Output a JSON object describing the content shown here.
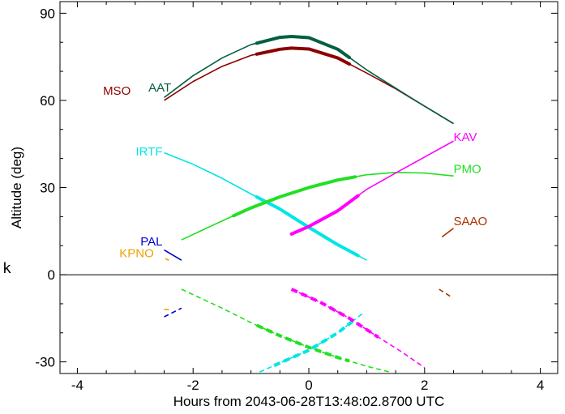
{
  "chart_data": {
    "type": "line",
    "title": "",
    "xlabel": "Hours from 2043-06-28T13:48:02.8700 UTC",
    "ylabel": "Altitude (deg)",
    "xlim": [
      -4.3,
      4.3
    ],
    "ylim": [
      -34,
      94
    ],
    "x_ticks": [
      -4,
      -2,
      0,
      2,
      4
    ],
    "y_ticks": [
      -30,
      0,
      30,
      60,
      90
    ],
    "x_tick_labels": [
      "-4",
      "-2",
      "0",
      "2",
      "4"
    ],
    "y_tick_labels": [
      "-30",
      "0",
      "30",
      "60",
      "90"
    ],
    "zero_line": 0,
    "side_label": "k",
    "grid": false,
    "series": [
      {
        "name": "MSO",
        "color": "#8b0000",
        "x": [
          -2.5,
          -2.0,
          -1.5,
          -1.0,
          -0.5,
          -0.3,
          0.0,
          0.5,
          1.0,
          1.5,
          2.0,
          2.5
        ],
        "y": [
          60,
          66.5,
          71.7,
          75.5,
          77.6,
          78,
          77.7,
          74.6,
          69.4,
          64,
          58,
          52
        ],
        "thick_x": [
          [
            -0.9,
            0.7
          ]
        ],
        "label_x": -3.05,
        "label_y": 62
      },
      {
        "name": "AAT",
        "color": "#006040",
        "x": [
          -2.5,
          -2.0,
          -1.5,
          -1.0,
          -0.5,
          -0.3,
          0.0,
          0.5,
          1.0,
          1.5,
          2.0,
          2.5
        ],
        "y": [
          61,
          68.5,
          74.6,
          79.2,
          81.7,
          82,
          81.6,
          77.6,
          70.5,
          64.2,
          58,
          52
        ],
        "thick_x": [
          [
            -0.9,
            0.7
          ]
        ],
        "label_x": -2.35,
        "label_y": 63
      },
      {
        "name": "IRTF",
        "color": "#00e5e5",
        "x": [
          -2.5,
          -2.0,
          -1.5,
          -1.0,
          -0.5,
          0.0,
          0.5,
          1.0
        ],
        "y": [
          42,
          38,
          33.2,
          27.8,
          22.6,
          16.3,
          10.3,
          5
        ],
        "thick_x": [
          [
            -0.9,
            0.85
          ]
        ],
        "label_x": -2.5,
        "label_y": 41
      },
      {
        "name": "PMO",
        "color": "#22e022",
        "x": [
          -2.2,
          -1.5,
          -1.0,
          -0.5,
          0.0,
          0.5,
          1.0,
          1.5,
          2.0,
          2.5
        ],
        "y": [
          12,
          18.5,
          23,
          26.8,
          30,
          32.6,
          34.4,
          35.2,
          35,
          34
        ],
        "thick_x": [
          [
            -1.3,
            0.8
          ]
        ],
        "label_x": 2.5,
        "label_y": 35
      },
      {
        "name": "KAV",
        "color": "#ff00ff",
        "x": [
          -0.3,
          0.0,
          0.5,
          1.0,
          1.5,
          2.0,
          2.5
        ],
        "y": [
          14,
          16.6,
          22,
          29.4,
          35,
          40.5,
          46
        ],
        "thick_x": [
          [
            -0.3,
            0.85
          ]
        ],
        "label_x": 2.5,
        "label_y": 46
      },
      {
        "name": "SAAO",
        "color": "#a83000",
        "x": [
          2.3,
          2.5
        ],
        "y": [
          13,
          16
        ],
        "thick_x": [],
        "label_x": 2.5,
        "label_y": 17
      },
      {
        "name": "PAL",
        "color": "#0000cc",
        "x": [
          -2.5,
          -2.2
        ],
        "y": [
          8.5,
          5
        ],
        "thick_x": [],
        "label_x": -2.5,
        "label_y": 10
      },
      {
        "name": "KPNO",
        "color": "#f0a000",
        "x": [
          -2.48,
          -2.42
        ],
        "y": [
          5.5,
          5
        ],
        "thick_x": [],
        "label_x": -2.65,
        "label_y": 6
      }
    ],
    "dashed_series": [
      {
        "color": "#22e022",
        "x": [
          -2.2,
          -1.5,
          -1.0,
          -0.5,
          0.0,
          0.5,
          1.0,
          1.4
        ],
        "y": [
          -5,
          -11.5,
          -16.5,
          -21,
          -25,
          -28.5,
          -31.5,
          -33.5
        ],
        "thick_x": [
          [
            -0.9,
            0.7
          ]
        ]
      },
      {
        "color": "#00e5e5",
        "x": [
          -0.85,
          -0.4,
          0.0,
          0.5,
          0.95
        ],
        "y": [
          -33.5,
          -29.5,
          -26,
          -20,
          -13
        ],
        "thick_x": [
          [
            -0.6,
            0.8
          ]
        ]
      },
      {
        "color": "#ff00ff",
        "x": [
          -0.3,
          0.2,
          0.7,
          1.2,
          1.6,
          2.0
        ],
        "y": [
          -5,
          -9.5,
          -15,
          -21.5,
          -26.5,
          -32
        ],
        "thick_x": [
          [
            -0.3,
            1.2
          ]
        ]
      },
      {
        "color": "#0000cc",
        "x": [
          -2.5,
          -2.2
        ],
        "y": [
          -14.5,
          -11.5
        ],
        "thick_x": []
      },
      {
        "color": "#f0a000",
        "x": [
          -2.5,
          -2.4
        ],
        "y": [
          -12,
          -12
        ],
        "thick_x": []
      },
      {
        "color": "#a83000",
        "x": [
          2.25,
          2.45
        ],
        "y": [
          -5,
          -7.5
        ],
        "thick_x": []
      }
    ]
  }
}
